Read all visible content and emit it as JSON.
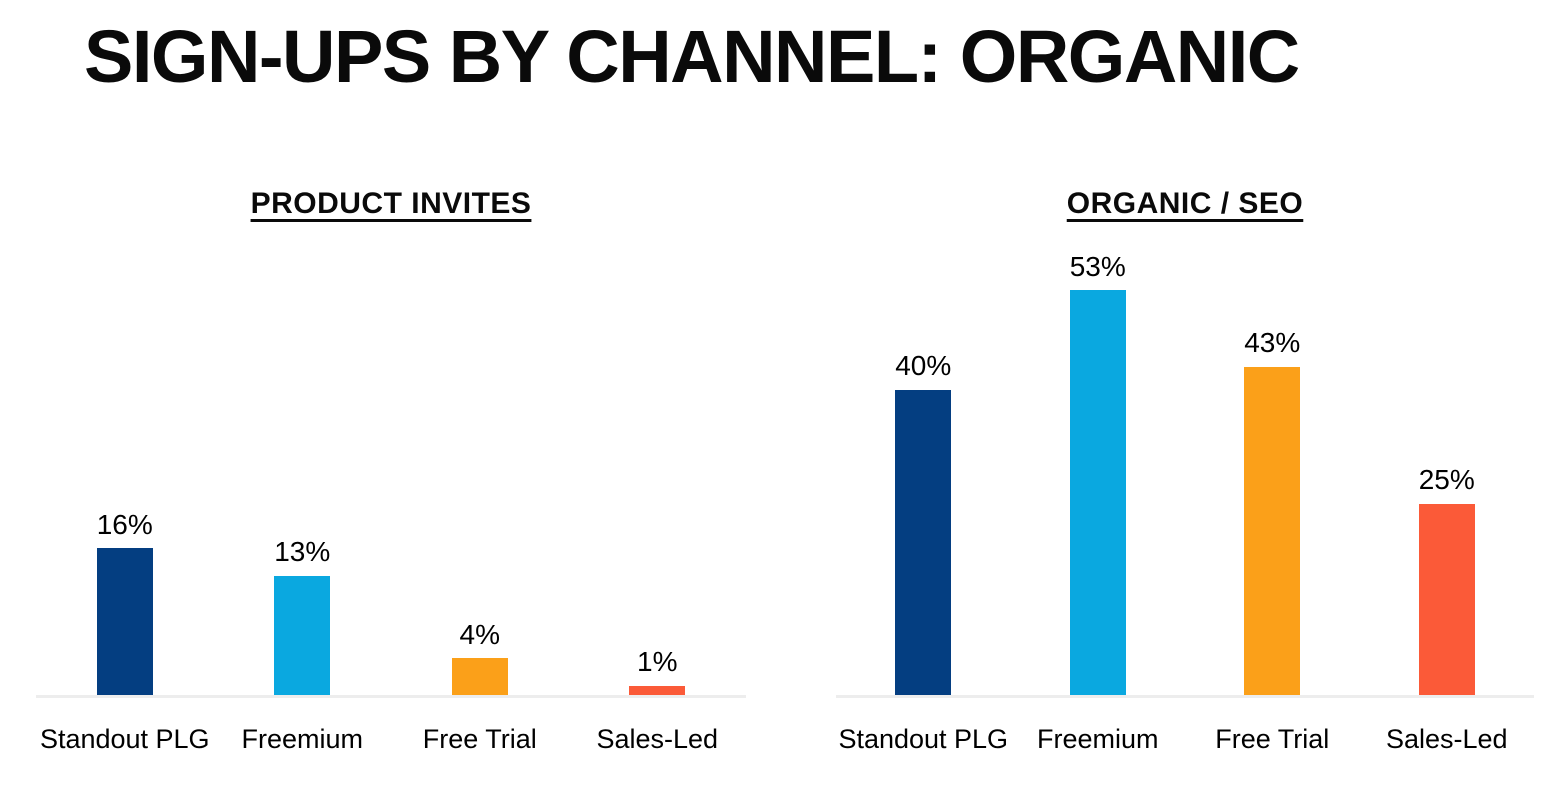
{
  "title": "SIGN-UPS BY CHANNEL: ORGANIC",
  "background_color": "#FFFFFF",
  "axis_line_color": "#EDEDED",
  "chart_data": [
    {
      "type": "bar",
      "title": "PRODUCT INVITES",
      "categories": [
        "Standout PLG",
        "Freemium",
        "Free Trial",
        "Sales-Led"
      ],
      "values": [
        16,
        13,
        4,
        1
      ],
      "value_labels": [
        "16%",
        "13%",
        "4%",
        "1%"
      ],
      "bar_colors": [
        "#043E81",
        "#0AA8E0",
        "#FBA019",
        "#FB5A38"
      ],
      "xlabel": "",
      "ylabel": "",
      "ylim": [
        0,
        50
      ],
      "grid": false,
      "legend": false,
      "data_labels_position": "above-bar"
    },
    {
      "type": "bar",
      "title": "ORGANIC / SEO",
      "categories": [
        "Standout PLG",
        "Freemium",
        "Free Trial",
        "Sales-Led"
      ],
      "values": [
        40,
        53,
        43,
        25
      ],
      "value_labels": [
        "40%",
        "53%",
        "43%",
        "25%"
      ],
      "bar_colors": [
        "#043E81",
        "#0AA8E0",
        "#FBA019",
        "#FB5A38"
      ],
      "xlabel": "",
      "ylabel": "",
      "ylim": [
        0,
        60
      ],
      "grid": false,
      "legend": false,
      "data_labels_position": "above-bar"
    }
  ]
}
